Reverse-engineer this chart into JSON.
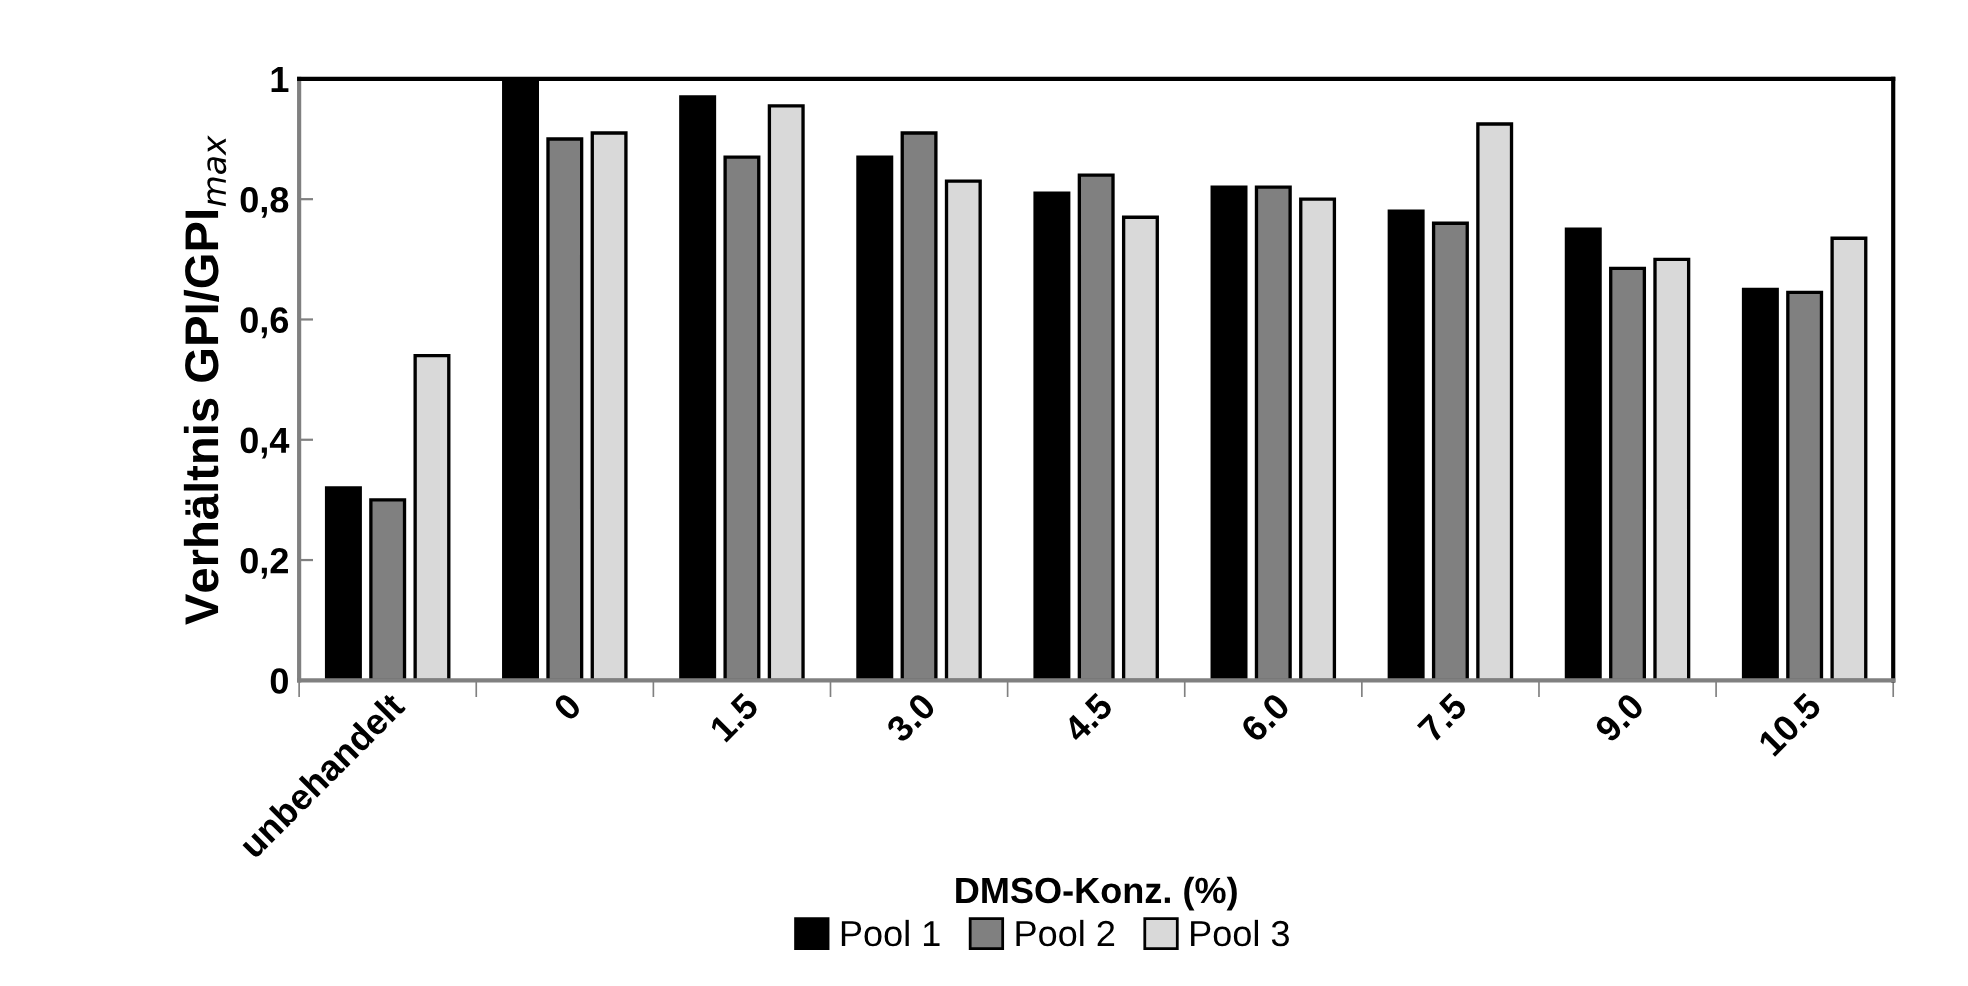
{
  "chart_data": {
    "type": "bar",
    "xlabel": "DMSO-Konz. (%)",
    "ylabel": "Verhältnis GPI/GPI$_{max}$",
    "categories": [
      "unbehandelt",
      "0",
      "1.5",
      "3.0",
      "4.5",
      "6.0",
      "7.5",
      "9.0",
      "10.5"
    ],
    "series": [
      {
        "name": "Pool 1",
        "color": "#000000",
        "values": [
          0.32,
          1.0,
          0.97,
          0.87,
          0.81,
          0.82,
          0.78,
          0.75,
          0.65
        ]
      },
      {
        "name": "Pool 2",
        "color": "#808080",
        "values": [
          0.3,
          0.9,
          0.87,
          0.91,
          0.84,
          0.82,
          0.76,
          0.685,
          0.645
        ]
      },
      {
        "name": "Pool 3",
        "color": "#d9d9d9",
        "values": [
          0.54,
          0.91,
          0.955,
          0.83,
          0.77,
          0.8,
          0.925,
          0.7,
          0.735
        ]
      }
    ],
    "ylim": [
      0,
      1
    ],
    "yticks": [
      0,
      {
        "value": 0.2,
        "label": "0,2"
      },
      {
        "value": 0.4,
        "label": "0,4"
      },
      {
        "value": 0.6,
        "label": "0,6"
      },
      {
        "value": 0.8,
        "label": "0,8"
      },
      1
    ],
    "legend": "bottom",
    "grid": false
  }
}
